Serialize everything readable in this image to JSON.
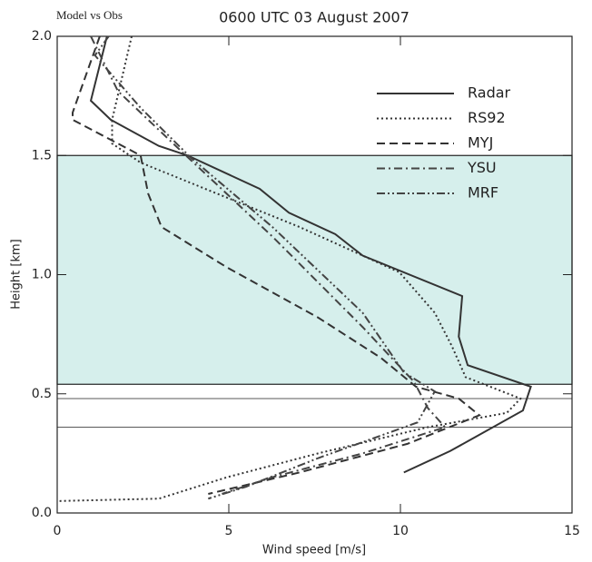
{
  "chart_data": {
    "type": "line",
    "corner_note": "Model vs Obs",
    "title": "0600 UTC 03 August 2007",
    "x_label": "Wind speed [m/s]",
    "y_label": "Height [km]",
    "xlim": [
      0,
      15
    ],
    "ylim": [
      0,
      2
    ],
    "xticks": [
      0,
      5,
      10,
      15
    ],
    "yticks": [
      {
        "value": 0,
        "label": "0.0"
      },
      {
        "value": 0.5,
        "label": "0.5"
      },
      {
        "value": 1,
        "label": "1.0"
      },
      {
        "value": 1.5,
        "label": "1.5"
      },
      {
        "value": 2,
        "label": "2.0"
      }
    ],
    "shaded_band": [
      0.54,
      1.5
    ],
    "shaded_color": "#d6efec",
    "hlines": [
      0.48,
      0.36
    ],
    "legend": "upper right",
    "series": [
      {
        "name": "Radar",
        "color": "#333333",
        "dash": "none",
        "x": [
          1.45,
          0.98,
          1.56,
          2.96,
          3.8,
          5.9,
          6.75,
          8.1,
          8.9,
          11.8,
          11.7,
          11.96,
          13.8,
          13.57,
          12.2,
          11.45,
          10.1
        ],
        "values": [
          2.0,
          1.73,
          1.65,
          1.54,
          1.5,
          1.36,
          1.26,
          1.17,
          1.08,
          0.91,
          0.74,
          0.62,
          0.53,
          0.43,
          0.32,
          0.26,
          0.17
        ]
      },
      {
        "name": "RS92",
        "color": "#333333",
        "dash": "2 3",
        "x": [
          2.17,
          1.6,
          1.6,
          2.43,
          7.06,
          9.97,
          11.0,
          11.5,
          11.9,
          13.5,
          13.1,
          10.8,
          7.6,
          4.95,
          2.96,
          0
        ],
        "values": [
          2.0,
          1.65,
          1.55,
          1.47,
          1.2,
          1.01,
          0.84,
          0.7,
          0.57,
          0.48,
          0.42,
          0.36,
          0.25,
          0.15,
          0.06,
          0.05
        ]
      },
      {
        "name": "MYJ",
        "color": "#333333",
        "dash": "9 5",
        "x": [
          1.24,
          0.45,
          0.45,
          2.43,
          2.65,
          3.04,
          4.95,
          7.6,
          9.44,
          10.45,
          11.7,
          12.3,
          10.2,
          7.06,
          4.4
        ],
        "values": [
          2.0,
          1.68,
          1.65,
          1.5,
          1.34,
          1.2,
          1.03,
          0.82,
          0.65,
          0.53,
          0.48,
          0.41,
          0.29,
          0.17,
          0.08
        ]
      },
      {
        "name": "YSU",
        "color": "#444444",
        "dash": "9 4 2 4",
        "x": [
          0.98,
          1.77,
          3.6,
          6.27,
          8.9,
          10.4,
          10.8,
          11.3,
          8.9,
          6.27,
          4.8
        ],
        "values": [
          2.0,
          1.77,
          1.52,
          1.16,
          0.78,
          0.55,
          0.44,
          0.36,
          0.25,
          0.15,
          0.08
        ]
      },
      {
        "name": "MRF",
        "color": "#444444",
        "dash": "9 3 2 3 2 3",
        "x": [
          1.5,
          1.1,
          2.43,
          3.9,
          6.27,
          8.9,
          10.1,
          11.0,
          10.5,
          7.6,
          5.5,
          4.4
        ],
        "values": [
          2.0,
          1.92,
          1.7,
          1.49,
          1.2,
          0.84,
          0.59,
          0.51,
          0.38,
          0.23,
          0.11,
          0.06
        ]
      }
    ]
  }
}
